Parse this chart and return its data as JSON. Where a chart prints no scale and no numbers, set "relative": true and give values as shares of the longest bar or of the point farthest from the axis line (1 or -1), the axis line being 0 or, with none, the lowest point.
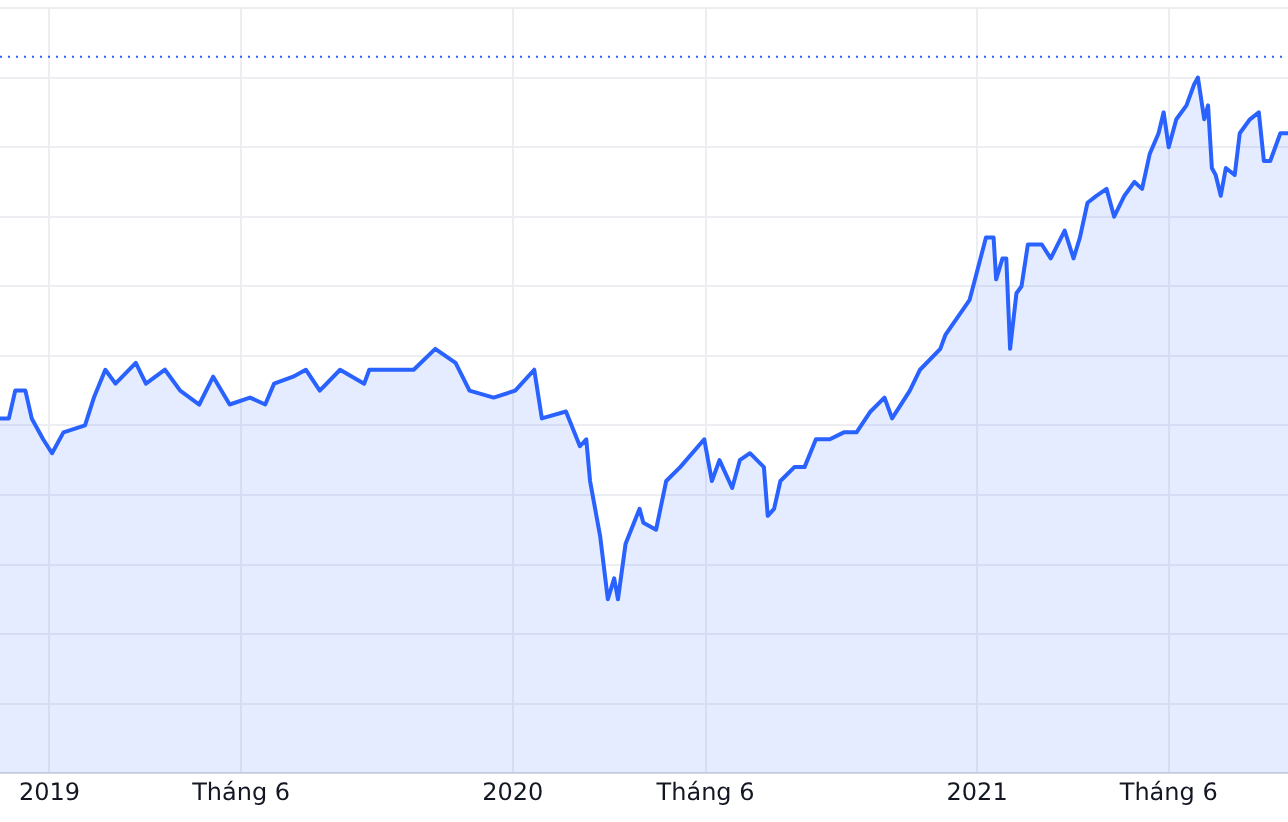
{
  "chart_data": {
    "type": "area",
    "relative": true,
    "grid": true,
    "legend": false,
    "xlim": [
      "2018-11-23",
      "2021-09-03"
    ],
    "xticks": [
      {
        "value": "2019-01-01",
        "label": "2019"
      },
      {
        "value": "2019-06-01",
        "label": "Tháng 6"
      },
      {
        "value": "2020-01-01",
        "label": "2020"
      },
      {
        "value": "2020-06-01",
        "label": "Tháng 6"
      },
      {
        "value": "2021-01-01",
        "label": "2021"
      },
      {
        "value": "2021-06-01",
        "label": "Tháng 6"
      }
    ],
    "ref_lines": [
      {
        "axis": "y",
        "value": 1.03,
        "color": "#2962ff",
        "line_style": "dotted"
      }
    ],
    "series": [
      {
        "color": "#2962ff",
        "x": [
          "2018-11-23",
          "2018-11-30",
          "2018-12-05",
          "2018-12-13",
          "2018-12-18",
          "2018-12-27",
          "2019-01-03",
          "2019-01-12",
          "2019-01-29",
          "2019-02-05",
          "2019-02-14",
          "2019-02-22",
          "2019-03-10",
          "2019-03-18",
          "2019-04-02",
          "2019-04-14",
          "2019-04-29",
          "2019-05-10",
          "2019-05-23",
          "2019-06-08",
          "2019-06-20",
          "2019-06-27",
          "2019-07-12",
          "2019-07-22",
          "2019-08-02",
          "2019-08-18",
          "2019-09-06",
          "2019-09-10",
          "2019-09-29",
          "2019-10-15",
          "2019-11-01",
          "2019-11-17",
          "2019-11-28",
          "2019-12-17",
          "2020-01-03",
          "2020-01-18",
          "2020-01-24",
          "2020-02-12",
          "2020-02-23",
          "2020-02-28",
          "2020-03-02",
          "2020-03-10",
          "2020-03-16",
          "2020-03-21",
          "2020-03-24",
          "2020-03-30",
          "2020-04-10",
          "2020-04-13",
          "2020-04-23",
          "2020-05-01",
          "2020-05-12",
          "2020-05-31",
          "2020-06-06",
          "2020-06-12",
          "2020-06-22",
          "2020-06-28",
          "2020-07-06",
          "2020-07-17",
          "2020-07-20",
          "2020-07-25",
          "2020-07-30",
          "2020-08-10",
          "2020-08-18",
          "2020-08-27",
          "2020-09-07",
          "2020-09-18",
          "2020-09-28",
          "2020-10-09",
          "2020-10-20",
          "2020-10-26",
          "2020-11-09",
          "2020-11-17",
          "2020-12-03",
          "2020-12-07",
          "2020-12-26",
          "2021-01-08",
          "2021-01-14",
          "2021-01-16",
          "2021-01-21",
          "2021-01-24",
          "2021-01-27",
          "2021-02-01",
          "2021-02-05",
          "2021-02-10",
          "2021-02-16",
          "2021-02-21",
          "2021-02-28",
          "2021-03-11",
          "2021-03-18",
          "2021-03-23",
          "2021-03-29",
          "2021-04-05",
          "2021-04-13",
          "2021-04-19",
          "2021-04-27",
          "2021-05-05",
          "2021-05-11",
          "2021-05-17",
          "2021-05-24",
          "2021-05-28",
          "2021-06-01",
          "2021-06-07",
          "2021-06-15",
          "2021-06-21",
          "2021-06-24",
          "2021-06-29",
          "2021-07-02",
          "2021-07-05",
          "2021-07-08",
          "2021-07-12",
          "2021-07-16",
          "2021-07-23",
          "2021-07-27",
          "2021-08-04",
          "2021-08-11",
          "2021-08-15",
          "2021-08-20",
          "2021-08-28",
          "2021-09-03"
        ],
        "values": [
          0.51,
          0.51,
          0.55,
          0.55,
          0.51,
          0.48,
          0.46,
          0.49,
          0.5,
          0.54,
          0.58,
          0.56,
          0.59,
          0.56,
          0.58,
          0.55,
          0.53,
          0.57,
          0.53,
          0.54,
          0.53,
          0.56,
          0.57,
          0.58,
          0.55,
          0.58,
          0.56,
          0.58,
          0.58,
          0.58,
          0.61,
          0.59,
          0.55,
          0.54,
          0.55,
          0.58,
          0.51,
          0.52,
          0.47,
          0.48,
          0.42,
          0.34,
          0.25,
          0.28,
          0.25,
          0.33,
          0.38,
          0.36,
          0.35,
          0.42,
          0.44,
          0.48,
          0.42,
          0.45,
          0.41,
          0.45,
          0.46,
          0.44,
          0.37,
          0.38,
          0.42,
          0.44,
          0.44,
          0.48,
          0.48,
          0.49,
          0.49,
          0.52,
          0.54,
          0.51,
          0.55,
          0.58,
          0.61,
          0.63,
          0.68,
          0.77,
          0.77,
          0.71,
          0.74,
          0.74,
          0.61,
          0.69,
          0.7,
          0.76,
          0.76,
          0.76,
          0.74,
          0.78,
          0.74,
          0.77,
          0.82,
          0.83,
          0.84,
          0.8,
          0.83,
          0.85,
          0.84,
          0.89,
          0.92,
          0.95,
          0.9,
          0.94,
          0.96,
          0.99,
          1.0,
          0.94,
          0.96,
          0.87,
          0.86,
          0.83,
          0.87,
          0.86,
          0.92,
          0.94,
          0.95,
          0.88,
          0.88,
          0.92,
          0.92
        ]
      }
    ]
  }
}
